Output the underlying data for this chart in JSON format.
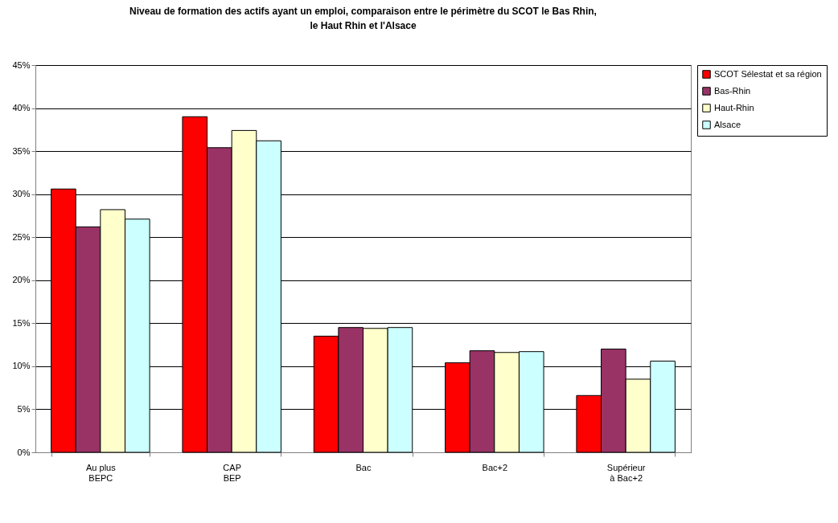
{
  "chart_data": {
    "type": "bar",
    "title": "Niveau de formation des actifs ayant un emploi, comparaison entre le périmètre du SCOT le Bas Rhin, le Haut Rhin et l'Alsace",
    "categories": [
      "Au plus\nBEPC",
      "CAP\nBEP",
      "Bac",
      "Bac+2",
      "Supérieur\nà Bac+2"
    ],
    "series": [
      {
        "name": "SCOT Sélestat et sa région",
        "color": "#ff0000",
        "values": [
          30.6,
          39.0,
          13.5,
          10.4,
          6.6
        ]
      },
      {
        "name": "Bas-Rhin",
        "color": "#993366",
        "values": [
          26.2,
          35.4,
          14.5,
          11.8,
          12.0
        ]
      },
      {
        "name": "Haut-Rhin",
        "color": "#ffffcc",
        "values": [
          28.2,
          37.4,
          14.4,
          11.6,
          8.5
        ]
      },
      {
        "name": "Alsace",
        "color": "#ccffff",
        "values": [
          27.1,
          36.2,
          14.5,
          11.7,
          10.6
        ]
      }
    ],
    "ylim": [
      0,
      45
    ],
    "yticks": [
      {
        "value": 0,
        "label": "0%"
      },
      {
        "value": 5,
        "label": "5%"
      },
      {
        "value": 10,
        "label": "10%"
      },
      {
        "value": 15,
        "label": "15%"
      },
      {
        "value": 20,
        "label": "20%"
      },
      {
        "value": 25,
        "label": "25%"
      },
      {
        "value": 30,
        "label": "30%"
      },
      {
        "value": 35,
        "label": "35%"
      },
      {
        "value": 40,
        "label": "40%"
      },
      {
        "value": 45,
        "label": "45%"
      }
    ],
    "grid": "y",
    "legend": "right"
  }
}
